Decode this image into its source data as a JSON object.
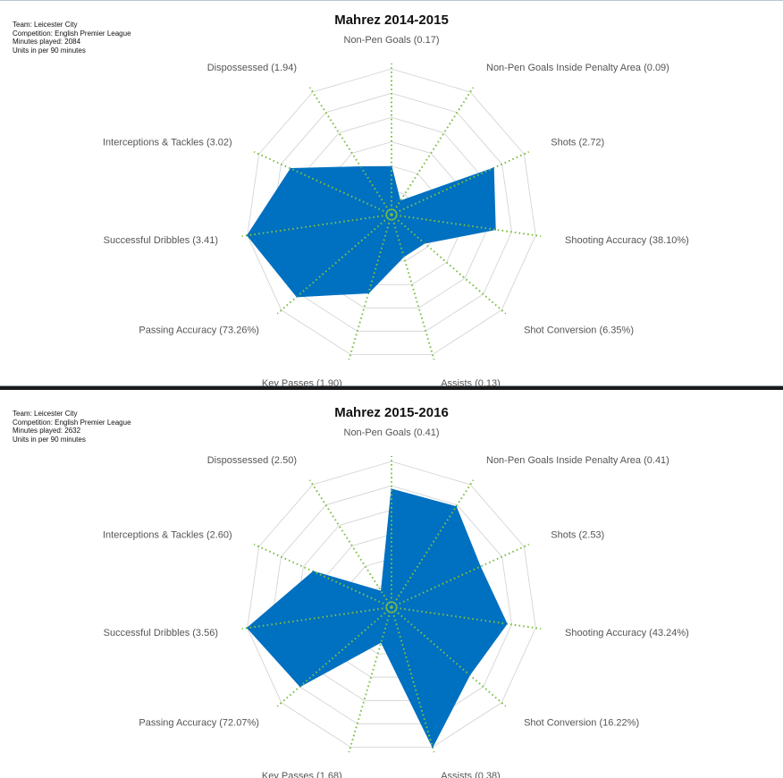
{
  "colors": {
    "fill": "#0070c0",
    "spoke": "#7ac143",
    "grid": "#d0d0d0",
    "divider": "#1a1a1a"
  },
  "chart_data": [
    {
      "type": "radar",
      "title": "Mahrez 2014-2015",
      "info": {
        "team": "Team: Leicester City",
        "competition": "Competition: English Premier League",
        "minutes": "Minutes played: 2084",
        "units": "Units in per 90 minutes"
      },
      "axes": [
        "Non-Pen Goals (0.17)",
        "Non-Pen Goals Inside Penalty Area (0.09)",
        "Shots (2.72)",
        "Shooting Accuracy (38.10%)",
        "Shot Conversion (6.35%)",
        "Assists (0.13)",
        "Key Passes (1.90)",
        "Passing Accuracy (73.26%)",
        "Successful Dribbles (3.41)",
        "Interceptions & Tackles (3.02)",
        "Dispossessed (1.94)"
      ],
      "values": [
        0.17,
        0.09,
        2.72,
        38.1,
        6.35,
        0.13,
        1.9,
        73.26,
        3.41,
        3.02,
        1.94
      ],
      "normalized": [
        0.33,
        0.11,
        0.77,
        0.72,
        0.3,
        0.3,
        0.56,
        0.86,
        1.0,
        0.76,
        0.39
      ],
      "grid_rings": 6
    },
    {
      "type": "radar",
      "title": "Mahrez 2015-2016",
      "info": {
        "team": "Team: Leicester City",
        "competition": "Competition: English Premier League",
        "minutes": "Minutes played: 2632",
        "units": "Units in per 90 minutes"
      },
      "axes": [
        "Non-Pen Goals (0.41)",
        "Non-Pen Goals Inside Penalty Area (0.41)",
        "Shots (2.53)",
        "Shooting Accuracy (43.24%)",
        "Shot Conversion (16.22%)",
        "Assists (0.38)",
        "Key Passes (1.68)",
        "Passing Accuracy (72.07%)",
        "Successful Dribbles (3.56)",
        "Interceptions & Tackles (2.60)",
        "Dispossessed (2.50)"
      ],
      "values": [
        0.41,
        0.41,
        2.53,
        43.24,
        16.22,
        0.38,
        1.68,
        72.07,
        3.56,
        2.6,
        2.5
      ],
      "normalized": [
        0.81,
        0.82,
        0.67,
        0.8,
        0.71,
        1.0,
        0.25,
        0.83,
        1.0,
        0.59,
        0.13
      ],
      "grid_rings": 6
    }
  ]
}
